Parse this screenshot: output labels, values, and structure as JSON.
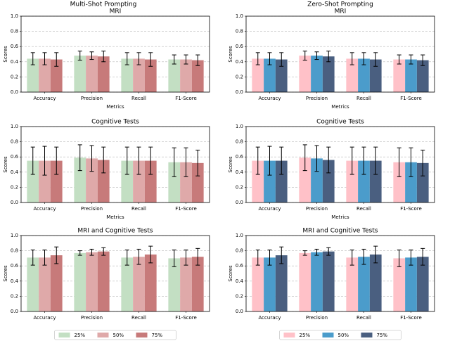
{
  "headers": [
    "Multi-Shot Prompting",
    "Zero-Shot Prompting"
  ],
  "chart_data": [
    {
      "type": "bar",
      "title": "MRI",
      "xlabel": "Metrics",
      "ylabel": "Scores",
      "categories": [
        "Accuracy",
        "Precision",
        "Recall",
        "F1-Score"
      ],
      "series": [
        {
          "name": "25%",
          "color": "#c3dfc3",
          "values": [
            0.44,
            0.48,
            0.44,
            0.43
          ],
          "errors": [
            0.08,
            0.06,
            0.08,
            0.06
          ]
        },
        {
          "name": "50%",
          "color": "#dfa9a9",
          "values": [
            0.44,
            0.48,
            0.44,
            0.43
          ],
          "errors": [
            0.08,
            0.05,
            0.08,
            0.06
          ]
        },
        {
          "name": "75%",
          "color": "#c77a7a",
          "values": [
            0.43,
            0.47,
            0.43,
            0.42
          ],
          "errors": [
            0.09,
            0.07,
            0.09,
            0.07
          ]
        }
      ],
      "ylim": [
        0,
        1
      ],
      "yticks": [
        {
          "value": 0,
          "label": "0.0"
        },
        0.2,
        0.4,
        0.6,
        0.8,
        {
          "value": 1,
          "label": "1.0"
        }
      ],
      "grid": true
    },
    {
      "type": "bar",
      "title": "Cognitive Tests",
      "xlabel": "Metrics",
      "ylabel": "Scores",
      "categories": [
        "Accuracy",
        "Precision",
        "Recall",
        "F1-Score"
      ],
      "series": [
        {
          "name": "25%",
          "color": "#c3dfc3",
          "values": [
            0.55,
            0.59,
            0.55,
            0.53
          ],
          "errors": [
            0.18,
            0.17,
            0.18,
            0.19
          ]
        },
        {
          "name": "50%",
          "color": "#dfa9a9",
          "values": [
            0.55,
            0.58,
            0.55,
            0.53
          ],
          "errors": [
            0.19,
            0.17,
            0.18,
            0.19
          ]
        },
        {
          "name": "75%",
          "color": "#c77a7a",
          "values": [
            0.55,
            0.56,
            0.55,
            0.52
          ],
          "errors": [
            0.18,
            0.17,
            0.18,
            0.17
          ]
        }
      ],
      "ylim": [
        0,
        1
      ],
      "yticks": [
        {
          "value": 0,
          "label": "0.0"
        },
        0.2,
        0.4,
        0.6,
        0.8,
        {
          "value": 1,
          "label": "1.0"
        }
      ],
      "grid": true
    },
    {
      "type": "bar",
      "title": "MRI and Cognitive Tests",
      "ylabel": "Scores",
      "categories": [
        "Accuracy",
        "Precision",
        "Recall",
        "F1-Score"
      ],
      "series": [
        {
          "name": "25%",
          "color": "#c3dfc3",
          "values": [
            0.71,
            0.77,
            0.71,
            0.7
          ],
          "errors": [
            0.1,
            0.03,
            0.1,
            0.11
          ]
        },
        {
          "name": "50%",
          "color": "#dfa9a9",
          "values": [
            0.71,
            0.78,
            0.72,
            0.71
          ],
          "errors": [
            0.1,
            0.04,
            0.1,
            0.1
          ]
        },
        {
          "name": "75%",
          "color": "#c77a7a",
          "values": [
            0.74,
            0.79,
            0.75,
            0.72
          ],
          "errors": [
            0.11,
            0.05,
            0.11,
            0.11
          ]
        }
      ],
      "ylim": [
        0,
        1
      ],
      "yticks": [
        {
          "value": 0,
          "label": "0.0"
        },
        0.2,
        0.4,
        0.6,
        0.8,
        {
          "value": 1,
          "label": "1.0"
        }
      ],
      "grid": true,
      "legend": "below"
    },
    {
      "type": "bar",
      "title": "MRI",
      "xlabel": "Metrics",
      "ylabel": "Scores",
      "categories": [
        "Accuracy",
        "Precision",
        "Recall",
        "F1-Score"
      ],
      "series": [
        {
          "name": "25%",
          "color": "#ffc1c8",
          "values": [
            0.44,
            0.48,
            0.44,
            0.43
          ],
          "errors": [
            0.08,
            0.06,
            0.08,
            0.06
          ]
        },
        {
          "name": "50%",
          "color": "#4b9ccb",
          "values": [
            0.44,
            0.48,
            0.44,
            0.43
          ],
          "errors": [
            0.08,
            0.05,
            0.08,
            0.06
          ]
        },
        {
          "name": "75%",
          "color": "#4a5f80",
          "values": [
            0.43,
            0.47,
            0.43,
            0.42
          ],
          "errors": [
            0.09,
            0.07,
            0.09,
            0.07
          ]
        }
      ],
      "ylim": [
        0,
        1
      ],
      "yticks": [
        {
          "value": 0,
          "label": "0.0"
        },
        0.2,
        0.4,
        0.6,
        0.8,
        {
          "value": 1,
          "label": "1.0"
        }
      ],
      "grid": true
    },
    {
      "type": "bar",
      "title": "Cognitive Tests",
      "xlabel": "Metrics",
      "ylabel": "Scores",
      "categories": [
        "Accuracy",
        "Precision",
        "Recall",
        "F1-Score"
      ],
      "series": [
        {
          "name": "25%",
          "color": "#ffc1c8",
          "values": [
            0.55,
            0.59,
            0.55,
            0.53
          ],
          "errors": [
            0.18,
            0.17,
            0.18,
            0.19
          ]
        },
        {
          "name": "50%",
          "color": "#4b9ccb",
          "values": [
            0.55,
            0.58,
            0.55,
            0.53
          ],
          "errors": [
            0.19,
            0.17,
            0.18,
            0.19
          ]
        },
        {
          "name": "75%",
          "color": "#4a5f80",
          "values": [
            0.55,
            0.56,
            0.55,
            0.52
          ],
          "errors": [
            0.18,
            0.17,
            0.18,
            0.17
          ]
        }
      ],
      "ylim": [
        0,
        1
      ],
      "yticks": [
        {
          "value": 0,
          "label": "0.0"
        },
        0.2,
        0.4,
        0.6,
        0.8,
        {
          "value": 1,
          "label": "1.0"
        }
      ],
      "grid": true
    },
    {
      "type": "bar",
      "title": "MRI and Cognitive Tests",
      "ylabel": "Scores",
      "categories": [
        "Accuracy",
        "Precision",
        "Recall",
        "F1-Score"
      ],
      "series": [
        {
          "name": "25%",
          "color": "#ffc1c8",
          "values": [
            0.71,
            0.77,
            0.71,
            0.7
          ],
          "errors": [
            0.1,
            0.03,
            0.1,
            0.11
          ]
        },
        {
          "name": "50%",
          "color": "#4b9ccb",
          "values": [
            0.71,
            0.78,
            0.72,
            0.71
          ],
          "errors": [
            0.1,
            0.04,
            0.1,
            0.1
          ]
        },
        {
          "name": "75%",
          "color": "#4a5f80",
          "values": [
            0.74,
            0.79,
            0.75,
            0.72
          ],
          "errors": [
            0.11,
            0.05,
            0.11,
            0.11
          ]
        }
      ],
      "ylim": [
        0,
        1
      ],
      "yticks": [
        {
          "value": 0,
          "label": "0.0"
        },
        0.2,
        0.4,
        0.6,
        0.8,
        {
          "value": 1,
          "label": "1.0"
        }
      ],
      "grid": true,
      "legend": "below"
    }
  ]
}
